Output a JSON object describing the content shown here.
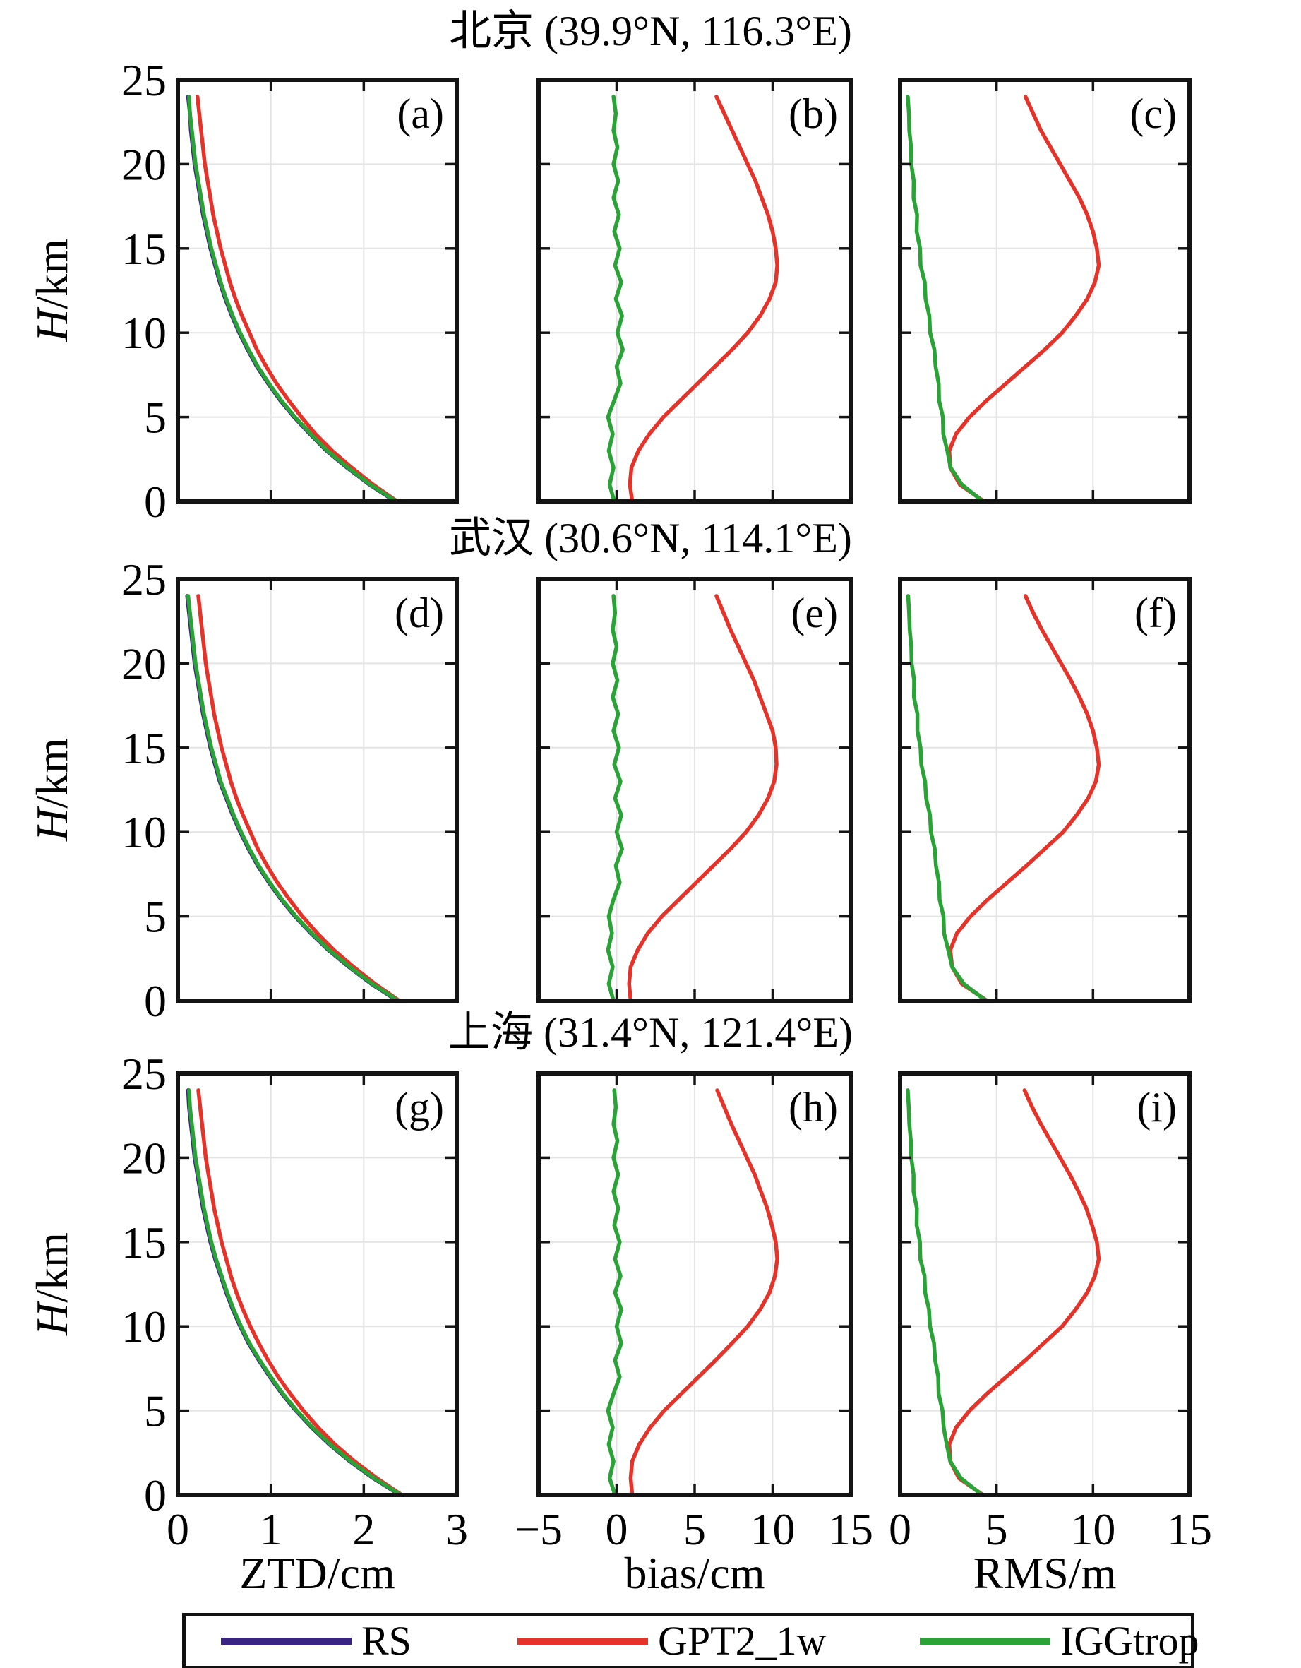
{
  "chart_data": {
    "type": "line",
    "h_km": [
      0,
      1,
      2,
      3,
      4,
      5,
      6,
      7,
      8,
      9,
      10,
      11,
      12,
      13,
      14,
      15,
      16,
      17,
      18,
      19,
      20,
      21,
      22,
      23,
      24
    ],
    "y_axis": {
      "label": "H/km",
      "label_parts": [
        "H",
        "/km"
      ],
      "range": [
        0,
        25
      ],
      "ticks": [
        0,
        5,
        10,
        15,
        20,
        25
      ],
      "tick_labels": [
        "0",
        "5",
        "10",
        "15",
        "20",
        "25"
      ],
      "grid": [
        5,
        10,
        15,
        20
      ]
    },
    "columns": [
      {
        "xlabel": "ZTD/cm",
        "range": [
          0,
          3
        ],
        "ticks": [
          0,
          1,
          2,
          3
        ],
        "tick_labels": [
          "0",
          "1",
          "2",
          "3"
        ],
        "grid": [
          1,
          2
        ]
      },
      {
        "xlabel": "bias/cm",
        "range": [
          -5,
          15
        ],
        "ticks": [
          -5,
          0,
          5,
          10,
          15
        ],
        "tick_labels": [
          "−5",
          "0",
          "5",
          "10",
          "15"
        ],
        "grid": [
          0,
          5,
          10
        ]
      },
      {
        "xlabel": "RMS/m",
        "range": [
          0,
          15
        ],
        "ticks": [
          0,
          5,
          10,
          15
        ],
        "tick_labels": [
          "0",
          "5",
          "10",
          "15"
        ],
        "grid": [
          5,
          10
        ]
      }
    ],
    "series_colors": {
      "RS": "#392383",
      "GPT2_1w": "#e5332a",
      "IGGtrop": "#2aa336"
    },
    "legend": [
      {
        "label": "RS",
        "color": "#392383"
      },
      {
        "label": "GPT2_1w",
        "color": "#e5332a"
      },
      {
        "label": "IGGtrop",
        "color": "#2aa336"
      }
    ],
    "rows": [
      {
        "title": "北京 (39.9°N, 116.3°E)",
        "panels": [
          {
            "letter": "(a)",
            "series": [
              {
                "name": "RS",
                "x": [
                  2.34,
                  2.06,
                  1.82,
                  1.6,
                  1.42,
                  1.25,
                  1.1,
                  0.97,
                  0.85,
                  0.75,
                  0.66,
                  0.58,
                  0.51,
                  0.45,
                  0.4,
                  0.35,
                  0.31,
                  0.27,
                  0.24,
                  0.21,
                  0.18,
                  0.16,
                  0.14,
                  0.13,
                  0.11
                ]
              },
              {
                "name": "GPT2_1w",
                "x": [
                  2.36,
                  2.1,
                  1.87,
                  1.66,
                  1.48,
                  1.33,
                  1.19,
                  1.06,
                  0.95,
                  0.85,
                  0.77,
                  0.69,
                  0.62,
                  0.56,
                  0.51,
                  0.46,
                  0.42,
                  0.38,
                  0.35,
                  0.32,
                  0.29,
                  0.27,
                  0.25,
                  0.23,
                  0.21
                ]
              },
              {
                "name": "IGGtrop",
                "x": [
                  2.35,
                  2.07,
                  1.83,
                  1.61,
                  1.43,
                  1.26,
                  1.11,
                  0.98,
                  0.86,
                  0.76,
                  0.67,
                  0.59,
                  0.52,
                  0.46,
                  0.41,
                  0.36,
                  0.32,
                  0.28,
                  0.25,
                  0.22,
                  0.19,
                  0.17,
                  0.15,
                  0.13,
                  0.12
                ]
              }
            ]
          },
          {
            "letter": "(b)",
            "series": [
              {
                "name": "GPT2_1w",
                "x": [
                  1.0,
                  0.85,
                  0.95,
                  1.4,
                  2.1,
                  3.0,
                  4.1,
                  5.2,
                  6.3,
                  7.4,
                  8.4,
                  9.2,
                  9.8,
                  10.2,
                  10.3,
                  10.2,
                  10.0,
                  9.7,
                  9.3,
                  8.9,
                  8.4,
                  7.9,
                  7.4,
                  6.9,
                  6.4
                ]
              },
              {
                "name": "IGGtrop",
                "x": [
                  -0.15,
                  -0.45,
                  -0.2,
                  -0.5,
                  -0.25,
                  -0.55,
                  -0.15,
                  0.25,
                  0.0,
                  0.4,
                  0.05,
                  0.35,
                  -0.05,
                  0.3,
                  -0.1,
                  0.2,
                  -0.15,
                  0.15,
                  -0.2,
                  0.1,
                  -0.2,
                  0.05,
                  -0.2,
                  -0.05,
                  -0.2
                ]
              }
            ]
          },
          {
            "letter": "(c)",
            "series": [
              {
                "name": "GPT2_1w",
                "x": [
                  4.35,
                  3.1,
                  2.6,
                  2.55,
                  2.9,
                  3.6,
                  4.5,
                  5.5,
                  6.5,
                  7.5,
                  8.4,
                  9.1,
                  9.7,
                  10.1,
                  10.3,
                  10.2,
                  10.0,
                  9.7,
                  9.3,
                  8.8,
                  8.3,
                  7.8,
                  7.3,
                  6.9,
                  6.5
                ]
              },
              {
                "name": "IGGtrop",
                "x": [
                  4.3,
                  3.2,
                  2.62,
                  2.45,
                  2.24,
                  2.22,
                  2.02,
                  2.0,
                  1.84,
                  1.78,
                  1.56,
                  1.52,
                  1.32,
                  1.28,
                  1.06,
                  1.04,
                  0.86,
                  0.88,
                  0.7,
                  0.71,
                  0.58,
                  0.57,
                  0.48,
                  0.46,
                  0.4
                ]
              }
            ]
          }
        ]
      },
      {
        "title": "武汉 (30.6°N, 114.1°E)",
        "panels": [
          {
            "letter": "(d)",
            "series": [
              {
                "name": "RS",
                "x": [
                  2.36,
                  2.08,
                  1.84,
                  1.62,
                  1.43,
                  1.26,
                  1.11,
                  0.98,
                  0.86,
                  0.76,
                  0.67,
                  0.59,
                  0.52,
                  0.45,
                  0.4,
                  0.35,
                  0.31,
                  0.27,
                  0.24,
                  0.21,
                  0.18,
                  0.16,
                  0.14,
                  0.12,
                  0.1
                ]
              },
              {
                "name": "GPT2_1w",
                "x": [
                  2.38,
                  2.12,
                  1.89,
                  1.68,
                  1.5,
                  1.34,
                  1.2,
                  1.07,
                  0.96,
                  0.86,
                  0.78,
                  0.7,
                  0.63,
                  0.57,
                  0.52,
                  0.47,
                  0.43,
                  0.39,
                  0.36,
                  0.33,
                  0.3,
                  0.28,
                  0.26,
                  0.24,
                  0.22
                ]
              },
              {
                "name": "IGGtrop",
                "x": [
                  2.37,
                  2.09,
                  1.85,
                  1.63,
                  1.44,
                  1.27,
                  1.12,
                  0.99,
                  0.87,
                  0.77,
                  0.68,
                  0.6,
                  0.53,
                  0.46,
                  0.41,
                  0.36,
                  0.32,
                  0.28,
                  0.25,
                  0.22,
                  0.19,
                  0.17,
                  0.15,
                  0.13,
                  0.11
                ]
              }
            ]
          },
          {
            "letter": "(e)",
            "series": [
              {
                "name": "GPT2_1w",
                "x": [
                  0.9,
                  0.8,
                  0.9,
                  1.35,
                  2.0,
                  2.9,
                  4.0,
                  5.1,
                  6.2,
                  7.3,
                  8.3,
                  9.1,
                  9.7,
                  10.1,
                  10.25,
                  10.2,
                  10.0,
                  9.6,
                  9.2,
                  8.8,
                  8.3,
                  7.8,
                  7.3,
                  6.85,
                  6.4
                ]
              },
              {
                "name": "IGGtrop",
                "x": [
                  -0.2,
                  -0.5,
                  -0.25,
                  -0.55,
                  -0.3,
                  -0.5,
                  -0.2,
                  0.2,
                  -0.05,
                  0.35,
                  0.0,
                  0.3,
                  -0.1,
                  0.25,
                  -0.15,
                  0.15,
                  -0.2,
                  0.1,
                  -0.25,
                  0.05,
                  -0.25,
                  0.0,
                  -0.25,
                  -0.1,
                  -0.2
                ]
              }
            ]
          },
          {
            "letter": "(f)",
            "series": [
              {
                "name": "GPT2_1w",
                "x": [
                  4.5,
                  3.2,
                  2.7,
                  2.6,
                  2.95,
                  3.65,
                  4.55,
                  5.55,
                  6.55,
                  7.5,
                  8.45,
                  9.15,
                  9.75,
                  10.15,
                  10.3,
                  10.2,
                  10.0,
                  9.7,
                  9.3,
                  8.85,
                  8.35,
                  7.85,
                  7.35,
                  6.9,
                  6.5
                ]
              },
              {
                "name": "IGGtrop",
                "x": [
                  4.45,
                  3.3,
                  2.7,
                  2.5,
                  2.28,
                  2.25,
                  2.05,
                  2.02,
                  1.86,
                  1.8,
                  1.6,
                  1.55,
                  1.35,
                  1.3,
                  1.1,
                  1.06,
                  0.9,
                  0.9,
                  0.72,
                  0.73,
                  0.6,
                  0.58,
                  0.5,
                  0.47,
                  0.42
                ]
              }
            ]
          }
        ]
      },
      {
        "title": "上海 (31.4°N, 121.4°E)",
        "panels": [
          {
            "letter": "(g)",
            "series": [
              {
                "name": "RS",
                "x": [
                  2.39,
                  2.1,
                  1.85,
                  1.63,
                  1.44,
                  1.27,
                  1.12,
                  0.99,
                  0.87,
                  0.76,
                  0.67,
                  0.59,
                  0.52,
                  0.46,
                  0.4,
                  0.35,
                  0.31,
                  0.27,
                  0.24,
                  0.21,
                  0.18,
                  0.16,
                  0.14,
                  0.12,
                  0.11
                ]
              },
              {
                "name": "GPT2_1w",
                "x": [
                  2.41,
                  2.14,
                  1.9,
                  1.69,
                  1.51,
                  1.35,
                  1.21,
                  1.08,
                  0.97,
                  0.87,
                  0.78,
                  0.7,
                  0.63,
                  0.57,
                  0.52,
                  0.47,
                  0.43,
                  0.39,
                  0.36,
                  0.33,
                  0.3,
                  0.28,
                  0.26,
                  0.24,
                  0.22
                ]
              },
              {
                "name": "IGGtrop",
                "x": [
                  2.4,
                  2.11,
                  1.86,
                  1.64,
                  1.45,
                  1.28,
                  1.13,
                  1.0,
                  0.88,
                  0.77,
                  0.68,
                  0.6,
                  0.53,
                  0.47,
                  0.41,
                  0.36,
                  0.32,
                  0.28,
                  0.25,
                  0.22,
                  0.19,
                  0.17,
                  0.15,
                  0.13,
                  0.12
                ]
              }
            ]
          },
          {
            "letter": "(h)",
            "series": [
              {
                "name": "GPT2_1w",
                "x": [
                  1.0,
                  0.9,
                  1.0,
                  1.45,
                  2.15,
                  3.05,
                  4.15,
                  5.25,
                  6.35,
                  7.4,
                  8.4,
                  9.2,
                  9.8,
                  10.15,
                  10.3,
                  10.2,
                  9.95,
                  9.65,
                  9.25,
                  8.85,
                  8.35,
                  7.85,
                  7.35,
                  6.9,
                  6.45
                ]
              },
              {
                "name": "IGGtrop",
                "x": [
                  -0.1,
                  -0.45,
                  -0.2,
                  -0.5,
                  -0.25,
                  -0.55,
                  -0.2,
                  0.2,
                  -0.1,
                  0.3,
                  0.0,
                  0.3,
                  -0.1,
                  0.25,
                  -0.1,
                  0.2,
                  -0.15,
                  0.1,
                  -0.2,
                  0.1,
                  -0.2,
                  0.05,
                  -0.2,
                  -0.05,
                  -0.15
                ]
              }
            ]
          },
          {
            "letter": "(i)",
            "series": [
              {
                "name": "GPT2_1w",
                "x": [
                  4.3,
                  3.05,
                  2.6,
                  2.55,
                  2.9,
                  3.6,
                  4.5,
                  5.5,
                  6.5,
                  7.45,
                  8.4,
                  9.1,
                  9.7,
                  10.1,
                  10.3,
                  10.2,
                  9.95,
                  9.65,
                  9.25,
                  8.8,
                  8.3,
                  7.8,
                  7.3,
                  6.85,
                  6.45
                ]
              },
              {
                "name": "IGGtrop",
                "x": [
                  4.25,
                  3.15,
                  2.6,
                  2.42,
                  2.26,
                  2.2,
                  2.0,
                  1.98,
                  1.82,
                  1.76,
                  1.55,
                  1.5,
                  1.3,
                  1.27,
                  1.05,
                  1.03,
                  0.86,
                  0.87,
                  0.7,
                  0.7,
                  0.58,
                  0.56,
                  0.48,
                  0.45,
                  0.4
                ]
              }
            ]
          }
        ]
      }
    ]
  }
}
